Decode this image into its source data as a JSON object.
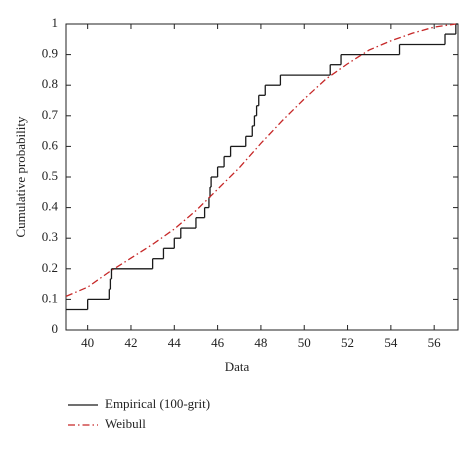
{
  "chart_data": {
    "type": "line",
    "xlabel": "Data",
    "ylabel": "Cumulative probability",
    "xlim": [
      39,
      57.1
    ],
    "ylim": [
      0,
      1
    ],
    "xticks": [
      40,
      42,
      44,
      46,
      48,
      50,
      52,
      54,
      56
    ],
    "yticks": [
      0,
      0.1,
      0.2,
      0.3,
      0.4,
      0.5,
      0.6,
      0.7,
      0.8,
      0.9,
      1
    ],
    "grid": false,
    "legend": "bottom",
    "series": [
      {
        "name": "Empirical (100-grit)",
        "color": "#1a1a1a",
        "step": "post",
        "dash": "solid",
        "x": [
          39,
          40,
          41,
          41.05,
          41.1,
          43,
          43.5,
          44,
          44.3,
          45,
          45.4,
          45.6,
          45.65,
          45.7,
          46,
          46.3,
          46.6,
          47.3,
          47.6,
          47.7,
          47.8,
          47.9,
          48.2,
          48.9,
          51.2,
          51.7,
          54.4,
          56.5,
          57
        ],
        "values": [
          0.067,
          0.1,
          0.133,
          0.167,
          0.2,
          0.233,
          0.267,
          0.3,
          0.333,
          0.367,
          0.4,
          0.433,
          0.467,
          0.5,
          0.533,
          0.567,
          0.6,
          0.633,
          0.667,
          0.7,
          0.733,
          0.767,
          0.8,
          0.833,
          0.867,
          0.9,
          0.933,
          0.967,
          1.0
        ]
      },
      {
        "name": "Weibull",
        "color": "#c62828",
        "dash": "dashdot",
        "x": [
          39,
          40,
          41,
          42,
          43,
          44,
          45,
          46,
          47,
          48,
          49,
          50,
          51,
          52,
          53,
          54,
          55,
          56,
          57
        ],
        "values": [
          0.11,
          0.14,
          0.19,
          0.235,
          0.28,
          0.33,
          0.39,
          0.46,
          0.53,
          0.61,
          0.685,
          0.755,
          0.82,
          0.87,
          0.915,
          0.945,
          0.97,
          0.99,
          1.0
        ]
      }
    ]
  }
}
